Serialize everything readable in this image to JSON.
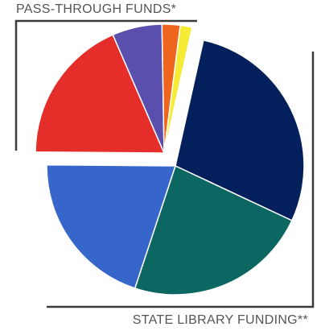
{
  "labels": {
    "pass_through": "PASS-THROUGH FUNDS*",
    "state_library": "STATE LIBRARY FUNDING**"
  },
  "chart_data": {
    "type": "pie",
    "title": "",
    "groups": [
      "PASS-THROUGH FUNDS*",
      "STATE LIBRARY FUNDING**"
    ],
    "slices": [
      {
        "group": 1,
        "value": 28.7,
        "color": "#03205c"
      },
      {
        "group": 1,
        "value": 23.3,
        "color": "#0c6661"
      },
      {
        "group": 1,
        "value": 20.2,
        "color": "#3666ca"
      },
      {
        "group": 0,
        "value": 18.5,
        "color": "#e52d2a"
      },
      {
        "group": 0,
        "value": 6.3,
        "color": "#5a4fad"
      },
      {
        "group": 0,
        "value": 2.3,
        "color": "#f0651e"
      },
      {
        "group": 0,
        "value": 1.5,
        "color": "#f5ea34"
      }
    ]
  }
}
